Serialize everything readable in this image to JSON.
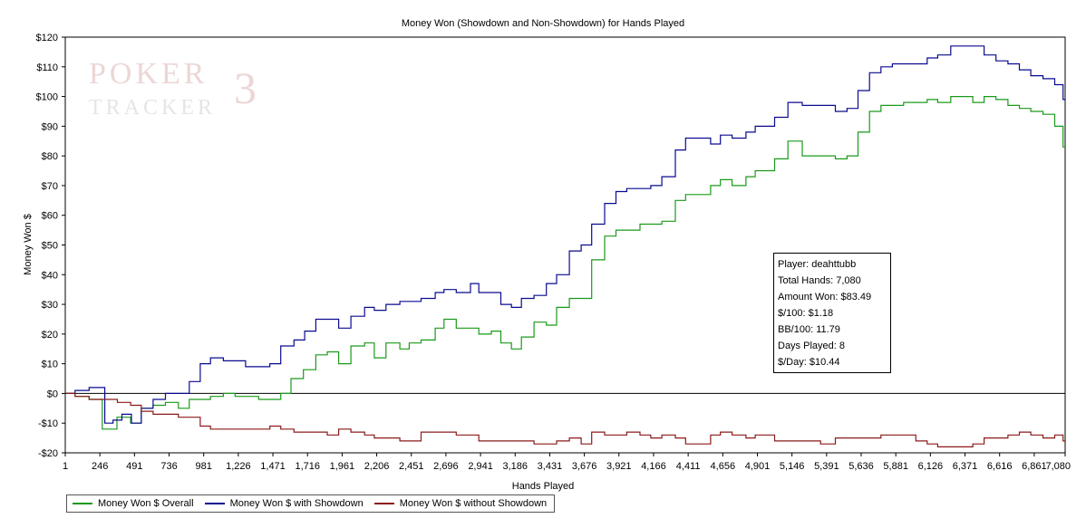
{
  "chart_data": {
    "type": "line",
    "title": "Money Won (Showdown and Non-Showdown) for Hands Played",
    "xlabel": "Hands Played",
    "ylabel": "Money Won $",
    "xlim": [
      1,
      7080
    ],
    "ylim": [
      -20,
      120
    ],
    "x_ticks": [
      1,
      246,
      491,
      736,
      981,
      1226,
      1471,
      1716,
      1961,
      2206,
      2451,
      2696,
      2941,
      3186,
      3431,
      3676,
      3921,
      4166,
      4411,
      4656,
      4901,
      5146,
      5391,
      5636,
      5881,
      6126,
      6371,
      6616,
      6861,
      7080
    ],
    "x_tick_labels": [
      "1",
      "246",
      "491",
      "736",
      "981",
      "1,226",
      "1,471",
      "1,716",
      "1,961",
      "2,206",
      "2,451",
      "2,696",
      "2,941",
      "3,186",
      "3,431",
      "3,676",
      "3,921",
      "4,166",
      "4,411",
      "4,656",
      "4,901",
      "5,146",
      "5,391",
      "5,636",
      "5,881",
      "6,126",
      "6,371",
      "6,616",
      "6,861",
      "7,080"
    ],
    "y_ticks": [
      -20,
      -10,
      0,
      10,
      20,
      30,
      40,
      50,
      60,
      70,
      80,
      90,
      100,
      110,
      120
    ],
    "y_tick_labels": [
      "-$20",
      "-$10",
      "$0",
      "$10",
      "$20",
      "$30",
      "$40",
      "$50",
      "$60",
      "$70",
      "$80",
      "$90",
      "$100",
      "$110",
      "$120"
    ],
    "grid": false,
    "zero_line": true,
    "legend_position": "bottom-left",
    "series": [
      {
        "name": "Money Won $ Overall",
        "color": "#1a9a1a",
        "points": [
          [
            1,
            0
          ],
          [
            100,
            -1
          ],
          [
            200,
            -2
          ],
          [
            290,
            -12
          ],
          [
            400,
            -8
          ],
          [
            491,
            -10
          ],
          [
            560,
            -5
          ],
          [
            650,
            -4
          ],
          [
            736,
            -3
          ],
          [
            830,
            -5
          ],
          [
            900,
            -2
          ],
          [
            981,
            -2
          ],
          [
            1050,
            -1
          ],
          [
            1150,
            0
          ],
          [
            1226,
            -1
          ],
          [
            1300,
            -1
          ],
          [
            1400,
            -2
          ],
          [
            1471,
            -2
          ],
          [
            1550,
            0
          ],
          [
            1620,
            5
          ],
          [
            1716,
            8
          ],
          [
            1800,
            13
          ],
          [
            1880,
            14
          ],
          [
            1961,
            10
          ],
          [
            2050,
            16
          ],
          [
            2150,
            17
          ],
          [
            2206,
            12
          ],
          [
            2300,
            17
          ],
          [
            2400,
            15
          ],
          [
            2451,
            17
          ],
          [
            2550,
            18
          ],
          [
            2650,
            22
          ],
          [
            2696,
            25
          ],
          [
            2800,
            22
          ],
          [
            2900,
            22
          ],
          [
            2941,
            20
          ],
          [
            3050,
            21
          ],
          [
            3100,
            17
          ],
          [
            3186,
            15
          ],
          [
            3250,
            19
          ],
          [
            3350,
            24
          ],
          [
            3431,
            23
          ],
          [
            3500,
            29
          ],
          [
            3600,
            32
          ],
          [
            3676,
            32
          ],
          [
            3750,
            45
          ],
          [
            3850,
            53
          ],
          [
            3921,
            55
          ],
          [
            4000,
            55
          ],
          [
            4100,
            57
          ],
          [
            4166,
            57
          ],
          [
            4250,
            58
          ],
          [
            4350,
            65
          ],
          [
            4411,
            67
          ],
          [
            4500,
            67
          ],
          [
            4600,
            70
          ],
          [
            4656,
            72
          ],
          [
            4750,
            70
          ],
          [
            4850,
            73
          ],
          [
            4901,
            75
          ],
          [
            4960,
            75
          ],
          [
            5050,
            79
          ],
          [
            5146,
            85
          ],
          [
            5250,
            80
          ],
          [
            5391,
            80
          ],
          [
            5480,
            79
          ],
          [
            5560,
            80
          ],
          [
            5636,
            88
          ],
          [
            5720,
            95
          ],
          [
            5800,
            97
          ],
          [
            5881,
            97
          ],
          [
            5960,
            98
          ],
          [
            6050,
            98
          ],
          [
            6126,
            99
          ],
          [
            6200,
            98
          ],
          [
            6300,
            100
          ],
          [
            6371,
            100
          ],
          [
            6450,
            98
          ],
          [
            6530,
            100
          ],
          [
            6616,
            99
          ],
          [
            6700,
            97
          ],
          [
            6780,
            96
          ],
          [
            6861,
            95
          ],
          [
            6950,
            94
          ],
          [
            7030,
            90
          ],
          [
            7080,
            83
          ]
        ]
      },
      {
        "name": "Money Won $ with Showdown",
        "color": "#0a0a90",
        "points": [
          [
            1,
            0
          ],
          [
            100,
            1
          ],
          [
            200,
            2
          ],
          [
            260,
            2
          ],
          [
            290,
            -10
          ],
          [
            360,
            -9
          ],
          [
            420,
            -7
          ],
          [
            491,
            -10
          ],
          [
            560,
            -5
          ],
          [
            650,
            -2
          ],
          [
            736,
            0
          ],
          [
            830,
            0
          ],
          [
            900,
            4
          ],
          [
            981,
            10
          ],
          [
            1050,
            12
          ],
          [
            1150,
            11
          ],
          [
            1226,
            11
          ],
          [
            1300,
            9
          ],
          [
            1400,
            9
          ],
          [
            1471,
            10
          ],
          [
            1550,
            16
          ],
          [
            1650,
            18
          ],
          [
            1716,
            21
          ],
          [
            1800,
            25
          ],
          [
            1880,
            25
          ],
          [
            1961,
            22
          ],
          [
            2050,
            26
          ],
          [
            2150,
            29
          ],
          [
            2206,
            28
          ],
          [
            2300,
            30
          ],
          [
            2400,
            31
          ],
          [
            2451,
            31
          ],
          [
            2550,
            32
          ],
          [
            2650,
            34
          ],
          [
            2696,
            35
          ],
          [
            2800,
            34
          ],
          [
            2900,
            37
          ],
          [
            2941,
            34
          ],
          [
            3050,
            34
          ],
          [
            3100,
            30
          ],
          [
            3186,
            29
          ],
          [
            3250,
            32
          ],
          [
            3350,
            33
          ],
          [
            3431,
            37
          ],
          [
            3500,
            40
          ],
          [
            3600,
            48
          ],
          [
            3676,
            50
          ],
          [
            3750,
            57
          ],
          [
            3850,
            64
          ],
          [
            3921,
            68
          ],
          [
            4000,
            69
          ],
          [
            4100,
            69
          ],
          [
            4166,
            70
          ],
          [
            4250,
            73
          ],
          [
            4350,
            82
          ],
          [
            4411,
            86
          ],
          [
            4500,
            86
          ],
          [
            4600,
            84
          ],
          [
            4656,
            87
          ],
          [
            4750,
            86
          ],
          [
            4850,
            88
          ],
          [
            4901,
            90
          ],
          [
            4960,
            90
          ],
          [
            5050,
            93
          ],
          [
            5146,
            98
          ],
          [
            5250,
            97
          ],
          [
            5391,
            97
          ],
          [
            5480,
            95
          ],
          [
            5560,
            96
          ],
          [
            5636,
            102
          ],
          [
            5720,
            108
          ],
          [
            5800,
            110
          ],
          [
            5881,
            111
          ],
          [
            5960,
            111
          ],
          [
            6050,
            111
          ],
          [
            6126,
            113
          ],
          [
            6200,
            114
          ],
          [
            6300,
            117
          ],
          [
            6371,
            117
          ],
          [
            6450,
            117
          ],
          [
            6530,
            114
          ],
          [
            6616,
            112
          ],
          [
            6700,
            111
          ],
          [
            6780,
            109
          ],
          [
            6861,
            107
          ],
          [
            6950,
            106
          ],
          [
            7030,
            104
          ],
          [
            7080,
            99
          ]
        ]
      },
      {
        "name": "Money Won $ without Showdown",
        "color": "#8b1a1a",
        "points": [
          [
            1,
            0
          ],
          [
            100,
            -1
          ],
          [
            200,
            -2
          ],
          [
            300,
            -2
          ],
          [
            400,
            -3
          ],
          [
            491,
            -4
          ],
          [
            560,
            -6
          ],
          [
            650,
            -7
          ],
          [
            736,
            -7
          ],
          [
            830,
            -8
          ],
          [
            900,
            -8
          ],
          [
            981,
            -11
          ],
          [
            1050,
            -12
          ],
          [
            1150,
            -12
          ],
          [
            1226,
            -12
          ],
          [
            1300,
            -12
          ],
          [
            1400,
            -12
          ],
          [
            1471,
            -11
          ],
          [
            1550,
            -12
          ],
          [
            1650,
            -13
          ],
          [
            1716,
            -13
          ],
          [
            1800,
            -13
          ],
          [
            1880,
            -14
          ],
          [
            1961,
            -12
          ],
          [
            2050,
            -13
          ],
          [
            2150,
            -14
          ],
          [
            2206,
            -15
          ],
          [
            2300,
            -15
          ],
          [
            2400,
            -16
          ],
          [
            2451,
            -16
          ],
          [
            2550,
            -13
          ],
          [
            2650,
            -13
          ],
          [
            2696,
            -13
          ],
          [
            2800,
            -14
          ],
          [
            2900,
            -14
          ],
          [
            2941,
            -16
          ],
          [
            3050,
            -16
          ],
          [
            3100,
            -16
          ],
          [
            3186,
            -16
          ],
          [
            3250,
            -16
          ],
          [
            3350,
            -17
          ],
          [
            3431,
            -17
          ],
          [
            3500,
            -16
          ],
          [
            3600,
            -15
          ],
          [
            3676,
            -17
          ],
          [
            3750,
            -13
          ],
          [
            3850,
            -14
          ],
          [
            3921,
            -14
          ],
          [
            4000,
            -13
          ],
          [
            4100,
            -14
          ],
          [
            4166,
            -15
          ],
          [
            4250,
            -14
          ],
          [
            4350,
            -15
          ],
          [
            4411,
            -17
          ],
          [
            4500,
            -17
          ],
          [
            4600,
            -14
          ],
          [
            4656,
            -13
          ],
          [
            4750,
            -14
          ],
          [
            4850,
            -15
          ],
          [
            4901,
            -14
          ],
          [
            4960,
            -14
          ],
          [
            5050,
            -16
          ],
          [
            5146,
            -16
          ],
          [
            5250,
            -16
          ],
          [
            5391,
            -17
          ],
          [
            5480,
            -15
          ],
          [
            5560,
            -15
          ],
          [
            5636,
            -15
          ],
          [
            5720,
            -15
          ],
          [
            5800,
            -14
          ],
          [
            5881,
            -14
          ],
          [
            5960,
            -14
          ],
          [
            6050,
            -16
          ],
          [
            6126,
            -17
          ],
          [
            6200,
            -18
          ],
          [
            6300,
            -18
          ],
          [
            6371,
            -18
          ],
          [
            6450,
            -17
          ],
          [
            6530,
            -15
          ],
          [
            6616,
            -15
          ],
          [
            6700,
            -14
          ],
          [
            6780,
            -13
          ],
          [
            6861,
            -14
          ],
          [
            6950,
            -15
          ],
          [
            7030,
            -14
          ],
          [
            7080,
            -16
          ]
        ]
      }
    ]
  },
  "stats": {
    "lines": [
      "Player: deahttubb",
      "Total Hands: 7,080",
      "Amount Won: $83.49",
      "$/100: $1.18",
      "BB/100: 11.79",
      "Days Played: 8",
      "$/Day: $10.44"
    ]
  },
  "watermark": {
    "line1": "POKER",
    "line2": "TRACKER",
    "mark": "3"
  }
}
